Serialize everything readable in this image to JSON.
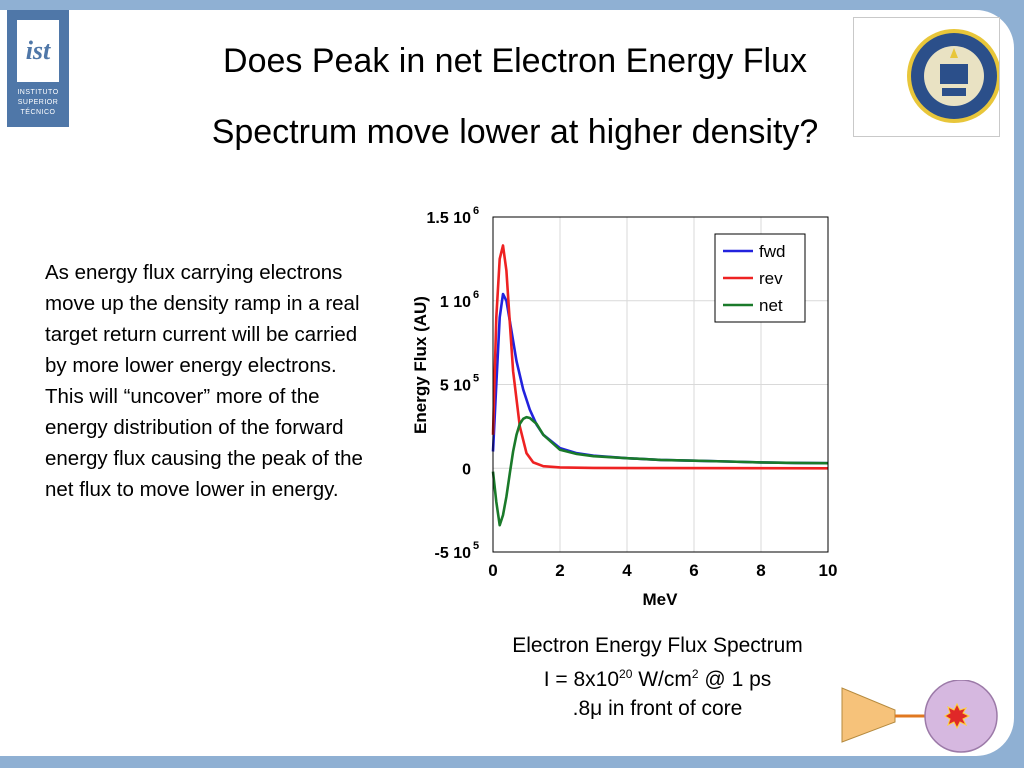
{
  "logo_ist": {
    "lines": [
      "INSTITUTO",
      "SUPERIOR",
      "TÉCNICO"
    ]
  },
  "title": {
    "line1": "Does Peak in net Electron Energy Flux",
    "line2": "Spectrum move lower at higher density?"
  },
  "body_text": "As energy flux carrying electrons move up the density ramp in a real target return current will be carried by more lower energy electrons. This will “uncover” more of the energy distribution of the forward energy flux causing the peak of the net flux to move lower in energy.",
  "caption": {
    "line1": "Electron Energy Flux Spectrum",
    "line2_prefix": "I = 8x10",
    "line2_exp": "20",
    "line2_mid": " W/cm",
    "line2_exp2": "2",
    "line2_suffix": " @ 1 ps",
    "line3": ".8μ in front of core"
  },
  "colors": {
    "fwd": "#2222dd",
    "rev": "#ee2222",
    "net": "#1a7a2a",
    "background": "#8fb0d3"
  },
  "chart_data": {
    "type": "line",
    "xlabel": "MeV",
    "ylabel": "Energy Flux (AU)",
    "xlim": [
      0,
      10
    ],
    "ylim": [
      -500000,
      1500000
    ],
    "grid": true,
    "legend_placement": "top-right",
    "x_ticks": [
      0,
      2,
      4,
      6,
      8,
      10
    ],
    "x_tick_labels": [
      "0",
      "2",
      "4",
      "6",
      "8",
      "10"
    ],
    "y_ticks": [
      {
        "value": 1500000,
        "mant": "1.5 10",
        "exp": "6"
      },
      {
        "value": 1000000,
        "mant": "1 10",
        "exp": "6"
      },
      {
        "value": 500000,
        "mant": "5 10",
        "exp": "5"
      },
      {
        "value": 0,
        "mant": "0",
        "exp": ""
      },
      {
        "value": -500000,
        "mant": "-5 10",
        "exp": "5"
      }
    ],
    "series": [
      {
        "name": "fwd",
        "x": [
          0,
          0.1,
          0.2,
          0.3,
          0.4,
          0.5,
          0.7,
          0.9,
          1.1,
          1.3,
          1.5,
          2,
          2.5,
          3,
          4,
          5,
          6,
          7,
          8,
          9,
          10
        ],
        "y": [
          100000,
          500000,
          900000,
          1040000,
          1000000,
          880000,
          640000,
          470000,
          350000,
          260000,
          200000,
          120000,
          90000,
          75000,
          60000,
          50000,
          45000,
          40000,
          35000,
          32000,
          30000
        ]
      },
      {
        "name": "rev",
        "x": [
          0,
          0.1,
          0.2,
          0.3,
          0.4,
          0.5,
          0.6,
          0.8,
          1.0,
          1.2,
          1.5,
          2,
          3,
          5,
          10
        ],
        "y": [
          200000,
          900000,
          1250000,
          1330000,
          1180000,
          870000,
          580000,
          250000,
          90000,
          35000,
          12000,
          5000,
          2000,
          1000,
          0
        ]
      },
      {
        "name": "net",
        "x": [
          0,
          0.1,
          0.2,
          0.3,
          0.4,
          0.5,
          0.6,
          0.7,
          0.8,
          0.9,
          1.0,
          1.1,
          1.3,
          1.5,
          2,
          2.5,
          3,
          4,
          5,
          6,
          7,
          8,
          9,
          10
        ],
        "y": [
          -20000,
          -200000,
          -340000,
          -280000,
          -170000,
          -30000,
          100000,
          200000,
          265000,
          295000,
          305000,
          300000,
          265000,
          200000,
          110000,
          85000,
          72000,
          60000,
          50000,
          45000,
          40000,
          35000,
          32000,
          30000
        ]
      }
    ]
  }
}
